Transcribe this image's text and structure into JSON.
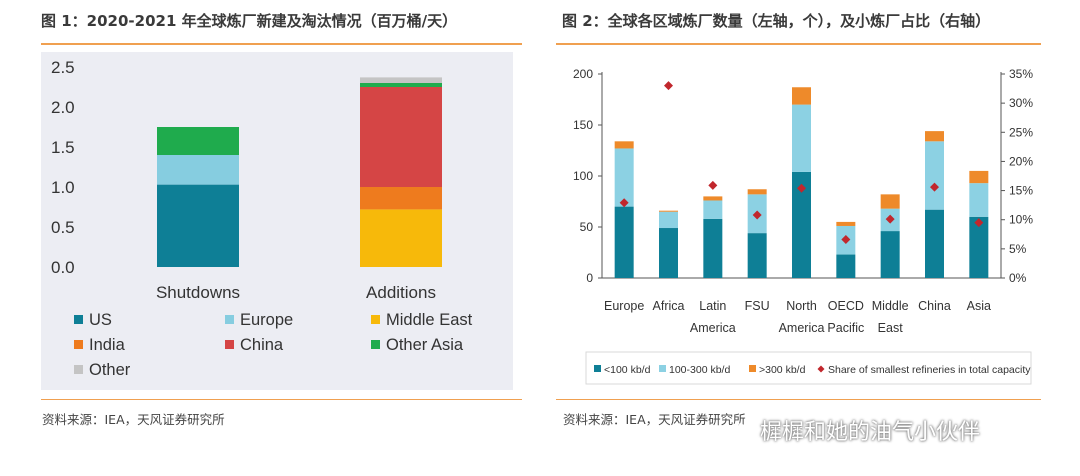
{
  "panels": {
    "left_title": "图 1：2020-2021 年全球炼厂新建及淘汰情况（百万桶/天）",
    "right_title": "图 2：全球各区域炼厂数量（左轴，个），及小炼厂占比（右轴）",
    "left_source": "资料来源：IEA，天风证券研究所",
    "right_source": "资料来源：IEA，天风证券研究所",
    "watermark": "樨樨和她的油气小伙伴"
  },
  "colors": {
    "US": "#0e7f96",
    "Europe": "#86cde0",
    "Middle East": "#f7b90a",
    "India": "#ee7b1e",
    "China": "#d54545",
    "Other Asia": "#1fab4d",
    "Other": "#c4c4c4",
    "small": "#0e7f96",
    "medium": "#8cd1e3",
    "large": "#ee8a2a",
    "share": "#c1272d",
    "accent_rule": "#f0a050"
  },
  "chart_data": [
    {
      "type": "bar",
      "stacked": true,
      "categories": [
        "Shutdowns",
        "Additions"
      ],
      "series": [
        {
          "name": "US",
          "values": [
            1.03,
            0.0
          ]
        },
        {
          "name": "Europe",
          "values": [
            0.37,
            0.0
          ]
        },
        {
          "name": "Middle East",
          "values": [
            0.0,
            0.72
          ]
        },
        {
          "name": "India",
          "values": [
            0.0,
            0.28
          ]
        },
        {
          "name": "China",
          "values": [
            0.0,
            1.25
          ]
        },
        {
          "name": "Other Asia",
          "values": [
            0.35,
            0.05
          ]
        },
        {
          "name": "Other",
          "values": [
            0.0,
            0.07
          ]
        }
      ],
      "ylim": [
        0,
        2.5
      ],
      "yticks": [
        "2.5",
        "2.0",
        "1.5",
        "1.0",
        "0.5",
        "0.0"
      ],
      "legend_position": "bottom",
      "grid": false
    },
    {
      "type": "bar",
      "stacked": true,
      "categories": [
        "Europe",
        "Africa",
        "Latin America",
        "FSU",
        "North America",
        "OECD Pacific",
        "Middle East",
        "China",
        "Asia"
      ],
      "category_lines": [
        [
          "Europe"
        ],
        [
          "Africa"
        ],
        [
          "Latin",
          "America"
        ],
        [
          "FSU"
        ],
        [
          "North",
          "America"
        ],
        [
          "OECD",
          "Pacific"
        ],
        [
          "Middle",
          "East"
        ],
        [
          "China"
        ],
        [
          "Asia"
        ]
      ],
      "series": [
        {
          "name": "<100 kb/d",
          "values": [
            70,
            49,
            58,
            44,
            104,
            23,
            46,
            67,
            60
          ]
        },
        {
          "name": "100-300 kb/d",
          "values": [
            57,
            16,
            18,
            38,
            66,
            28,
            22,
            67,
            33
          ]
        },
        {
          "name": ">300 kb/d",
          "values": [
            7,
            1,
            4,
            5,
            17,
            4,
            14,
            10,
            12
          ]
        },
        {
          "name": "Share of smallest refineries in total capacity",
          "values": [
            12.9,
            33.0,
            15.9,
            10.8,
            15.4,
            6.6,
            10.1,
            15.6,
            9.5
          ],
          "axis": "right",
          "marker": "diamond"
        }
      ],
      "ylim": [
        0,
        200
      ],
      "y2lim": [
        0,
        35
      ],
      "yticks": [
        "200",
        "150",
        "100",
        "50",
        "0"
      ],
      "y2ticks": [
        "35%",
        "30%",
        "25%",
        "20%",
        "15%",
        "10%",
        "5%",
        "0%"
      ],
      "legend_position": "bottom",
      "grid": false
    }
  ]
}
